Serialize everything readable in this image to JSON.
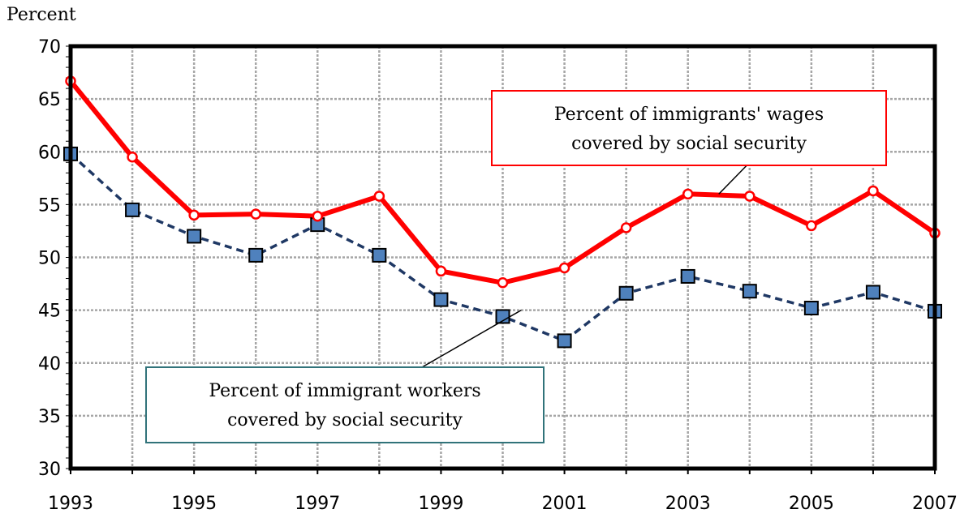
{
  "chart_data": {
    "type": "line",
    "title": "",
    "xlabel": "",
    "ylabel": "Percent",
    "ylim": [
      30,
      70
    ],
    "xlim": [
      1993,
      2007
    ],
    "y_ticks": [
      30,
      35,
      40,
      45,
      50,
      55,
      60,
      65,
      70
    ],
    "x_ticks": [
      1993,
      1995,
      1997,
      1999,
      2001,
      2003,
      2005,
      2007
    ],
    "x": [
      1993,
      1994,
      1995,
      1996,
      1997,
      1998,
      1999,
      2000,
      2001,
      2002,
      2003,
      2004,
      2005,
      2006,
      2007
    ],
    "grid": true,
    "series": [
      {
        "name": "Percent of immigrants' wages covered by social security",
        "color": "#ff0000",
        "style": "solid",
        "marker": "circle",
        "values": [
          66.7,
          59.5,
          54.0,
          54.1,
          53.9,
          55.8,
          48.7,
          47.6,
          49.0,
          52.8,
          56.0,
          55.8,
          53.0,
          56.3,
          52.3
        ]
      },
      {
        "name": "Percent of immigrant workers covered by social security",
        "color": "#1f3864",
        "marker_color": "#4f81bd",
        "style": "dashed",
        "marker": "square",
        "values": [
          59.8,
          54.5,
          52.0,
          50.2,
          53.1,
          50.2,
          46.0,
          44.4,
          42.1,
          46.6,
          48.2,
          46.8,
          45.2,
          46.7,
          44.9
        ]
      }
    ],
    "annotations": [
      {
        "lines": [
          "Percent of immigrants' wages",
          "covered by social security"
        ],
        "border_color": "#ff0000",
        "target": {
          "x": 2003.5,
          "y": 56.0
        }
      },
      {
        "lines": [
          "Percent of immigrant workers",
          "covered by social security"
        ],
        "border_color": "#31737a",
        "target": {
          "x": 2000.3,
          "y": 45.0
        }
      }
    ]
  }
}
